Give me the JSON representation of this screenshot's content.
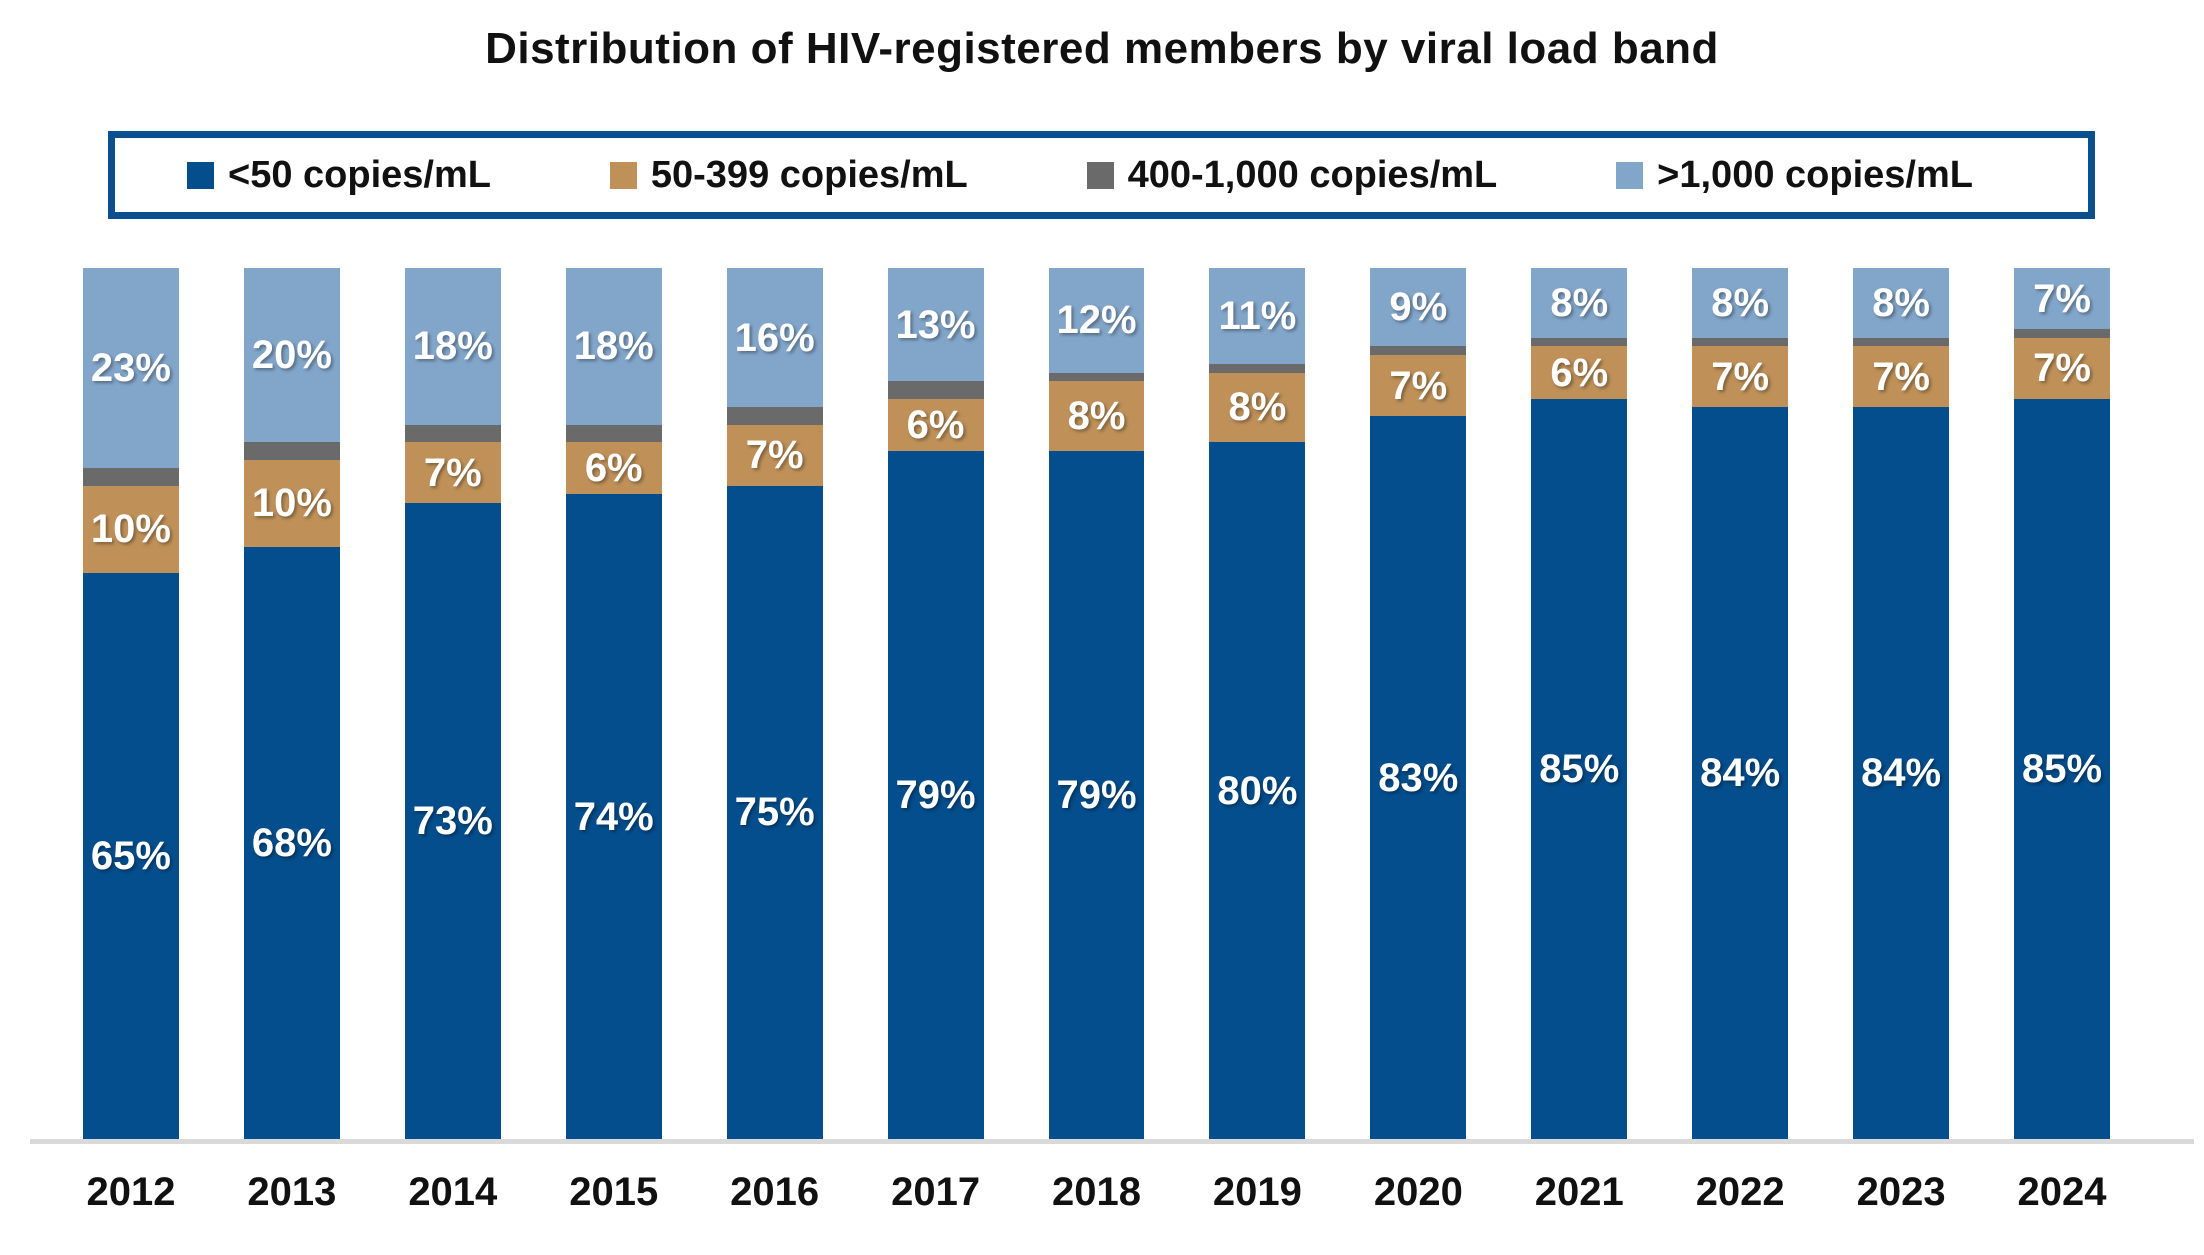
{
  "chart_data": {
    "type": "bar",
    "variant": "stacked-100-percent",
    "title": "Distribution of HIV-registered members by viral load band",
    "xlabel": "",
    "ylabel": "",
    "ylim": [
      0,
      100
    ],
    "grid": false,
    "legend_position": "top",
    "axis_line_color": "#D9D9D9",
    "legend_border_color": "#0C4F8F",
    "categories": [
      "2012",
      "2013",
      "2014",
      "2015",
      "2016",
      "2017",
      "2018",
      "2019",
      "2020",
      "2021",
      "2022",
      "2023",
      "2024"
    ],
    "series": [
      {
        "name": "<50 copies/mL",
        "color": "#044E8D",
        "show_labels": true,
        "values": [
          65,
          68,
          73,
          74,
          75,
          79,
          79,
          80,
          83,
          85,
          84,
          84,
          85
        ]
      },
      {
        "name": "50-399 copies/mL",
        "color": "#BF9159",
        "show_labels": true,
        "values": [
          10,
          10,
          7,
          6,
          7,
          6,
          8,
          8,
          7,
          6,
          7,
          7,
          7
        ]
      },
      {
        "name": "400-1,000 copies/mL",
        "color": "#6A6A6A",
        "show_labels": false,
        "values": [
          2,
          2,
          2,
          2,
          2,
          2,
          1,
          1,
          1,
          1,
          1,
          1,
          1
        ]
      },
      {
        "name": ">1,000 copies/mL",
        "color": "#82A6CA",
        "show_labels": true,
        "values": [
          23,
          20,
          18,
          18,
          16,
          13,
          12,
          11,
          9,
          8,
          8,
          8,
          7
        ]
      }
    ],
    "label_suffix": "%"
  }
}
